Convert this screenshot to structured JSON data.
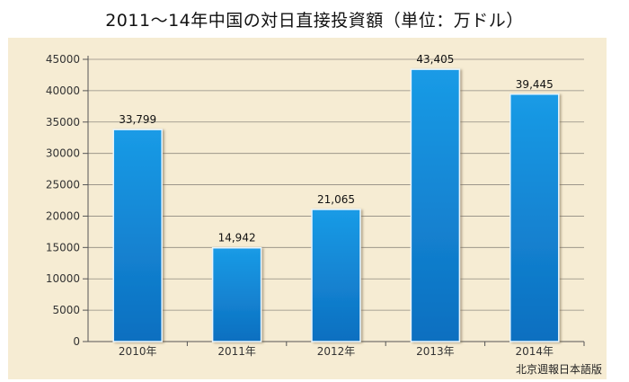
{
  "chart_data": {
    "type": "bar",
    "title": "2011～14年中国の対日直接投資額（単位：万ドル）",
    "categories": [
      "2010年",
      "2011年",
      "2012年",
      "2013年",
      "2014年"
    ],
    "values": [
      33799,
      14942,
      21065,
      43405,
      39445
    ],
    "value_labels": [
      "33,799",
      "14,942",
      "21,065",
      "43,405",
      "39,445"
    ],
    "yticks": [
      "0",
      "5000",
      "10000",
      "15000",
      "20000",
      "25000",
      "30000",
      "35000",
      "40000",
      "45000"
    ],
    "ylim": [
      0,
      45000
    ],
    "grid": true,
    "legend": "none",
    "bar_color": "#1a8ad8"
  },
  "source": "北京週報日本語版"
}
